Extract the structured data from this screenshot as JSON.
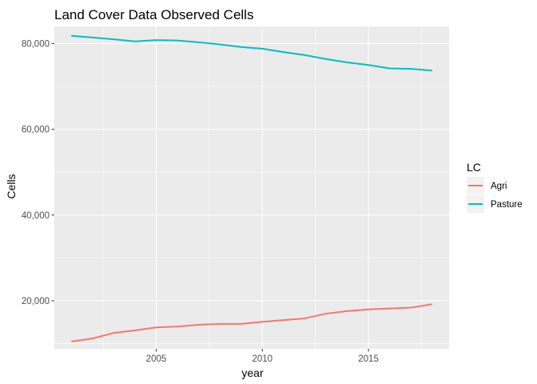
{
  "chart_data": {
    "type": "line",
    "title": "Land Cover Data Observed Cells",
    "xlabel": "year",
    "ylabel": "Cells",
    "xlim": [
      2000.2,
      2018.8
    ],
    "ylim": [
      8800,
      84000
    ],
    "x_ticks": [
      2005,
      2010,
      2015
    ],
    "x_tick_labels": [
      "2005",
      "2010",
      "2015"
    ],
    "y_ticks": [
      20000,
      40000,
      60000,
      80000
    ],
    "y_tick_labels": [
      "20,000",
      "40,000",
      "60,000",
      "80,000"
    ],
    "grid": true,
    "legend": {
      "title": "LC",
      "position": "right"
    },
    "x": [
      2001,
      2002,
      2003,
      2004,
      2005,
      2006,
      2007,
      2008,
      2009,
      2010,
      2011,
      2012,
      2013,
      2014,
      2015,
      2016,
      2017,
      2018
    ],
    "series": [
      {
        "name": "Agri",
        "color": "#F8766D",
        "values": [
          10500,
          11200,
          12500,
          13100,
          13800,
          14000,
          14400,
          14600,
          14600,
          15100,
          15500,
          15900,
          17000,
          17600,
          18000,
          18200,
          18400,
          19200
        ]
      },
      {
        "name": "Pasture",
        "color": "#00BFC4",
        "values": [
          81800,
          81400,
          81000,
          80500,
          80800,
          80700,
          80300,
          79800,
          79200,
          78800,
          78000,
          77300,
          76400,
          75600,
          75000,
          74200,
          74100,
          73700
        ]
      }
    ]
  }
}
